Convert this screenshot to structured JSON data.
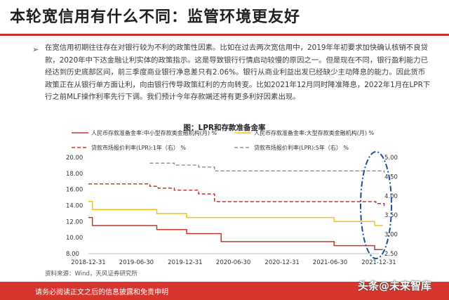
{
  "page": {
    "title": "本轮宽信用有什么不同：监管环境更友好",
    "paragraph": "在宽信用初期往往存在对银行较为不利的政策性因素。比如在过去两次宽信用中，2019年年初要求加快确认核销不良贷款，2020年中下达金融让利实体的政策指示。这是导致银行行情启动较慢的原因之一。但是现在不同，银行盈利能力已经达到历史底部区间，前三季度商业银行净息差只有2.06%。银行从商业利益出发已经缺少主动降息的能力。因此货币政策正在从银行单方面让利，向由银行传导政策红利的方向转变。比如2021年12月同时降准降息，2022年1月在LPR下行之前MLF操作利率先行下调。我们预计今年存款端还将有更多利好因素出现。",
    "bullet_symbol": "➢",
    "source": "资料来源：Wind，天风证券研究所",
    "footer": "请务必阅读正文之后的信息披露和免责申明",
    "watermark": "头条@未来智库"
  },
  "chart_data": {
    "type": "line",
    "title": "图：LPR和存款准备金率",
    "x": [
      "2018-12-31",
      "2019-06-30",
      "2019-12-31",
      "2020-06-30",
      "2020-12-31",
      "2021-06-30",
      "2021-12-31"
    ],
    "left_ylim": [
      8.0,
      20.0
    ],
    "left_ticks": [
      "20.00",
      "18.00",
      "16.00",
      "14.00",
      "12.00",
      "10.00",
      "8.00"
    ],
    "right_ylim": [
      2.5,
      5.0
    ],
    "right_ticks": [
      "5.00",
      "4.50",
      "4.00",
      "3.50",
      "3.00",
      "2.50"
    ],
    "legend_position": "top",
    "series": [
      {
        "name": "人民币存款准备金率:中小型存款类金融机构(月) %",
        "axis": "left",
        "color": "#c0392b",
        "dash": "solid",
        "points": [
          [
            "2018-12-31",
            12.5
          ],
          [
            "2019-01-15",
            11.5
          ],
          [
            "2019-09-15",
            11.0
          ],
          [
            "2020-01-06",
            10.5
          ],
          [
            "2020-05-15",
            9.5
          ],
          [
            "2021-07-15",
            9.0
          ],
          [
            "2021-12-15",
            8.5
          ],
          [
            "2022-01-15",
            8.5
          ]
        ]
      },
      {
        "name": "人民币存款准备金率:大型存款类金融机构(月) %",
        "axis": "left",
        "color": "#f0c419",
        "dash": "solid",
        "points": [
          [
            "2018-12-31",
            14.5
          ],
          [
            "2019-01-15",
            13.5
          ],
          [
            "2019-09-15",
            13.0
          ],
          [
            "2020-01-06",
            12.5
          ],
          [
            "2021-07-15",
            12.0
          ],
          [
            "2021-12-15",
            11.5
          ],
          [
            "2022-01-15",
            11.5
          ]
        ]
      },
      {
        "name": "贷款市场报价利率(LPR):1年（右） %",
        "axis": "right",
        "color": "#c0392b",
        "dash": "dashed",
        "points": [
          [
            "2018-12-31",
            4.31
          ],
          [
            "2019-08-20",
            4.25
          ],
          [
            "2019-09-20",
            4.2
          ],
          [
            "2019-11-20",
            4.15
          ],
          [
            "2020-02-20",
            4.05
          ],
          [
            "2020-04-20",
            3.85
          ],
          [
            "2021-12-20",
            3.8
          ],
          [
            "2022-01-20",
            3.7
          ]
        ]
      },
      {
        "name": "贷款市场报价利率(LPR):5年（右） %",
        "axis": "right",
        "color": "#8a96a3",
        "dash": "dashed",
        "points": [
          [
            "2019-08-20",
            4.85
          ],
          [
            "2019-11-20",
            4.8
          ],
          [
            "2020-02-20",
            4.75
          ],
          [
            "2020-04-20",
            4.65
          ],
          [
            "2022-01-20",
            4.6
          ]
        ]
      }
    ]
  }
}
